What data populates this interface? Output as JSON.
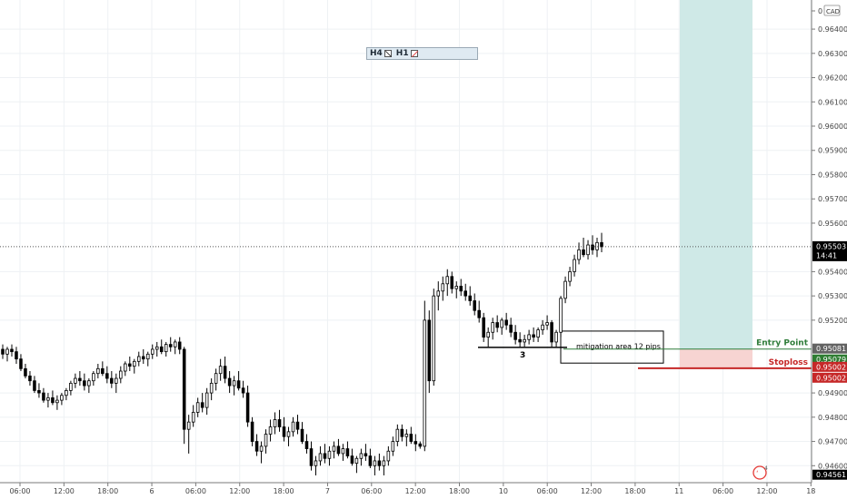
{
  "currency": "CAD",
  "timeframe_panel": {
    "h4": "H4",
    "h1": "H1"
  },
  "colors": {
    "up": "#000000",
    "down": "#000000",
    "target_zone": "#cfe9e7",
    "stop_zone": "#f7d4d2",
    "entry_line": "#2f7d3a",
    "stop_line": "#c62828",
    "current_price_tag": "#000000",
    "entry_tag": "#636363",
    "tp_tag": "#2e7d32",
    "sl_tag": "#c62828"
  },
  "annotations": {
    "entry_point": "Entry Point",
    "stoploss": "Stoploss",
    "mitigation": "mitigation area 12 pips",
    "swing_label": "3"
  },
  "price_tags": {
    "current": "0.95503",
    "countdown": "14:41",
    "entry": "0.95081",
    "tp": "0.95079",
    "stop1": "0.95002",
    "stop2": "0.95002",
    "bottom": "0.94561"
  },
  "chart_data": {
    "type": "candlestick",
    "title": "",
    "y_axis": {
      "position": "right",
      "range": [
        0.9453,
        0.9652
      ],
      "ticks": [
        "0.96400",
        "0.96300",
        "0.96200",
        "0.96100",
        "0.96000",
        "0.95900",
        "0.95800",
        "0.95700",
        "0.95600",
        "0.95400",
        "0.95300",
        "0.95200",
        "0.94900",
        "0.94800",
        "0.94700",
        "0.94600"
      ]
    },
    "x_axis": {
      "tick_labels": [
        "06:00",
        "12:00",
        "18:00",
        "6",
        "06:00",
        "12:00",
        "18:00",
        "7",
        "06:00",
        "12:00",
        "18:00",
        "10",
        "06:00",
        "12:00",
        "18:00",
        "11",
        "06:00",
        "12:00",
        "18"
      ]
    },
    "last_price": 0.95503,
    "entry_price": 0.95081,
    "stop_price": 0.95002,
    "mitigation_pips": 12,
    "ohlc": [
      [
        0.9508,
        0.951,
        0.9504,
        0.9506
      ],
      [
        0.9506,
        0.9509,
        0.9503,
        0.9508
      ],
      [
        0.9508,
        0.951,
        0.9505,
        0.9507
      ],
      [
        0.9507,
        0.9509,
        0.9502,
        0.9504
      ],
      [
        0.9504,
        0.9506,
        0.9499,
        0.95
      ],
      [
        0.95,
        0.9502,
        0.9496,
        0.9497
      ],
      [
        0.9497,
        0.9499,
        0.9493,
        0.9495
      ],
      [
        0.9495,
        0.9497,
        0.949,
        0.9491
      ],
      [
        0.9491,
        0.9494,
        0.9488,
        0.949
      ],
      [
        0.949,
        0.9492,
        0.9486,
        0.9487
      ],
      [
        0.9487,
        0.949,
        0.9484,
        0.9488
      ],
      [
        0.9488,
        0.9491,
        0.9485,
        0.9486
      ],
      [
        0.9486,
        0.9489,
        0.9483,
        0.9487
      ],
      [
        0.9487,
        0.949,
        0.9485,
        0.9489
      ],
      [
        0.9489,
        0.9492,
        0.9487,
        0.9491
      ],
      [
        0.9491,
        0.9495,
        0.9489,
        0.9494
      ],
      [
        0.9494,
        0.9498,
        0.9492,
        0.9496
      ],
      [
        0.9496,
        0.9499,
        0.9493,
        0.9495
      ],
      [
        0.9495,
        0.9498,
        0.9491,
        0.9493
      ],
      [
        0.9493,
        0.9496,
        0.949,
        0.9495
      ],
      [
        0.9495,
        0.9499,
        0.9493,
        0.9498
      ],
      [
        0.9498,
        0.9502,
        0.9496,
        0.95
      ],
      [
        0.95,
        0.9503,
        0.9497,
        0.9498
      ],
      [
        0.9498,
        0.9501,
        0.9494,
        0.9496
      ],
      [
        0.9496,
        0.9499,
        0.9492,
        0.9494
      ],
      [
        0.9494,
        0.9498,
        0.949,
        0.9496
      ],
      [
        0.9496,
        0.9501,
        0.9494,
        0.9499
      ],
      [
        0.9499,
        0.9503,
        0.9497,
        0.9502
      ],
      [
        0.9502,
        0.9505,
        0.9499,
        0.9501
      ],
      [
        0.9501,
        0.9504,
        0.9498,
        0.9503
      ],
      [
        0.9503,
        0.9507,
        0.9501,
        0.9505
      ],
      [
        0.9505,
        0.9508,
        0.9502,
        0.9504
      ],
      [
        0.9504,
        0.9507,
        0.9501,
        0.9506
      ],
      [
        0.9506,
        0.951,
        0.9504,
        0.9508
      ],
      [
        0.9508,
        0.9511,
        0.9505,
        0.9509
      ],
      [
        0.9509,
        0.9512,
        0.9506,
        0.9507
      ],
      [
        0.9507,
        0.9511,
        0.9505,
        0.951
      ],
      [
        0.951,
        0.9513,
        0.9507,
        0.9509
      ],
      [
        0.9509,
        0.9512,
        0.9506,
        0.9511
      ],
      [
        0.9511,
        0.9513,
        0.9506,
        0.9508
      ],
      [
        0.9508,
        0.9509,
        0.9469,
        0.9475
      ],
      [
        0.9475,
        0.9481,
        0.9465,
        0.9478
      ],
      [
        0.9478,
        0.9485,
        0.9476,
        0.9482
      ],
      [
        0.9482,
        0.9488,
        0.948,
        0.9486
      ],
      [
        0.9486,
        0.949,
        0.9482,
        0.9484
      ],
      [
        0.9484,
        0.9492,
        0.9481,
        0.949
      ],
      [
        0.949,
        0.9496,
        0.9487,
        0.9494
      ],
      [
        0.9494,
        0.95,
        0.9491,
        0.9498
      ],
      [
        0.9498,
        0.9504,
        0.9495,
        0.9501
      ],
      [
        0.9501,
        0.9505,
        0.9494,
        0.9496
      ],
      [
        0.9496,
        0.9499,
        0.949,
        0.9493
      ],
      [
        0.9493,
        0.9497,
        0.9489,
        0.9495
      ],
      [
        0.9495,
        0.9499,
        0.9491,
        0.9492
      ],
      [
        0.9492,
        0.9495,
        0.9488,
        0.949
      ],
      [
        0.949,
        0.9493,
        0.9476,
        0.9478
      ],
      [
        0.9478,
        0.948,
        0.9468,
        0.947
      ],
      [
        0.947,
        0.9473,
        0.9464,
        0.9466
      ],
      [
        0.9466,
        0.947,
        0.9461,
        0.9468
      ],
      [
        0.9468,
        0.9475,
        0.9465,
        0.9473
      ],
      [
        0.9473,
        0.9479,
        0.947,
        0.9476
      ],
      [
        0.9476,
        0.9482,
        0.9473,
        0.9479
      ],
      [
        0.9479,
        0.9483,
        0.9474,
        0.9476
      ],
      [
        0.9476,
        0.948,
        0.947,
        0.9472
      ],
      [
        0.9472,
        0.9476,
        0.9468,
        0.9474
      ],
      [
        0.9474,
        0.948,
        0.9472,
        0.9478
      ],
      [
        0.9478,
        0.9481,
        0.9473,
        0.9475
      ],
      [
        0.9475,
        0.9478,
        0.9469,
        0.947
      ],
      [
        0.947,
        0.9473,
        0.9465,
        0.9467
      ],
      [
        0.9467,
        0.947,
        0.9458,
        0.946
      ],
      [
        0.946,
        0.9464,
        0.9456,
        0.9462
      ],
      [
        0.9462,
        0.9468,
        0.946,
        0.9465
      ],
      [
        0.9465,
        0.9469,
        0.9461,
        0.9463
      ],
      [
        0.9463,
        0.9468,
        0.946,
        0.9466
      ],
      [
        0.9466,
        0.947,
        0.9463,
        0.9468
      ],
      [
        0.9468,
        0.9471,
        0.9464,
        0.9465
      ],
      [
        0.9465,
        0.9469,
        0.9462,
        0.9467
      ],
      [
        0.9467,
        0.947,
        0.9463,
        0.9464
      ],
      [
        0.9464,
        0.9467,
        0.946,
        0.9461
      ],
      [
        0.9461,
        0.9464,
        0.9457,
        0.9463
      ],
      [
        0.9463,
        0.9467,
        0.946,
        0.9465
      ],
      [
        0.9465,
        0.9469,
        0.9462,
        0.9464
      ],
      [
        0.9464,
        0.9467,
        0.9459,
        0.946
      ],
      [
        0.946,
        0.9464,
        0.9456,
        0.9462
      ],
      [
        0.9462,
        0.9465,
        0.9458,
        0.946
      ],
      [
        0.946,
        0.9464,
        0.9456,
        0.9462
      ],
      [
        0.9462,
        0.9468,
        0.946,
        0.9466
      ],
      [
        0.9466,
        0.9472,
        0.9464,
        0.947
      ],
      [
        0.947,
        0.9477,
        0.9468,
        0.9475
      ],
      [
        0.9475,
        0.9477,
        0.947,
        0.9472
      ],
      [
        0.9472,
        0.9475,
        0.9468,
        0.9473
      ],
      [
        0.9473,
        0.9476,
        0.9469,
        0.947
      ],
      [
        0.947,
        0.9473,
        0.9466,
        0.9469
      ],
      [
        0.9469,
        0.947,
        0.9467,
        0.9468
      ],
      [
        0.9468,
        0.9528,
        0.9466,
        0.952
      ],
      [
        0.952,
        0.9524,
        0.949,
        0.9495
      ],
      [
        0.9495,
        0.9533,
        0.9493,
        0.953
      ],
      [
        0.953,
        0.9536,
        0.9524,
        0.9532
      ],
      [
        0.9532,
        0.9538,
        0.9528,
        0.9535
      ],
      [
        0.9535,
        0.9541,
        0.953,
        0.9538
      ],
      [
        0.9538,
        0.954,
        0.9531,
        0.9533
      ],
      [
        0.9533,
        0.9536,
        0.9529,
        0.9534
      ],
      [
        0.9534,
        0.9537,
        0.953,
        0.9532
      ],
      [
        0.9532,
        0.9535,
        0.9528,
        0.953
      ],
      [
        0.953,
        0.9534,
        0.9526,
        0.9528
      ],
      [
        0.9528,
        0.9531,
        0.9522,
        0.9524
      ],
      [
        0.9524,
        0.9528,
        0.9519,
        0.9521
      ],
      [
        0.9521,
        0.9523,
        0.9511,
        0.9513
      ],
      [
        0.9513,
        0.9517,
        0.9509,
        0.9515
      ],
      [
        0.9515,
        0.9521,
        0.9512,
        0.9519
      ],
      [
        0.9519,
        0.9522,
        0.9515,
        0.9517
      ],
      [
        0.9517,
        0.9521,
        0.9514,
        0.952
      ],
      [
        0.952,
        0.9523,
        0.9516,
        0.9518
      ],
      [
        0.9518,
        0.9521,
        0.9513,
        0.9515
      ],
      [
        0.9515,
        0.9518,
        0.951,
        0.9512
      ],
      [
        0.9512,
        0.9515,
        0.9509,
        0.9511
      ],
      [
        0.9511,
        0.9514,
        0.9509,
        0.9512
      ],
      [
        0.9512,
        0.9516,
        0.951,
        0.9514
      ],
      [
        0.9514,
        0.9517,
        0.9511,
        0.9513
      ],
      [
        0.9513,
        0.9517,
        0.9511,
        0.9516
      ],
      [
        0.9516,
        0.952,
        0.9514,
        0.9518
      ],
      [
        0.9518,
        0.9522,
        0.9516,
        0.9519
      ],
      [
        0.9519,
        0.952,
        0.9509,
        0.9511
      ],
      [
        0.9511,
        0.9516,
        0.9509,
        0.9515
      ],
      [
        0.9515,
        0.953,
        0.9513,
        0.9529
      ],
      [
        0.9529,
        0.9538,
        0.9527,
        0.9536
      ],
      [
        0.9536,
        0.9542,
        0.9534,
        0.954
      ],
      [
        0.954,
        0.9547,
        0.9538,
        0.9545
      ],
      [
        0.9545,
        0.9552,
        0.9543,
        0.9549
      ],
      [
        0.9549,
        0.9554,
        0.9546,
        0.9547
      ],
      [
        0.9547,
        0.9553,
        0.9545,
        0.9551
      ],
      [
        0.9551,
        0.9555,
        0.9547,
        0.9549
      ],
      [
        0.9549,
        0.9554,
        0.9546,
        0.9552
      ],
      [
        0.9552,
        0.9556,
        0.9548,
        0.95503
      ]
    ]
  }
}
